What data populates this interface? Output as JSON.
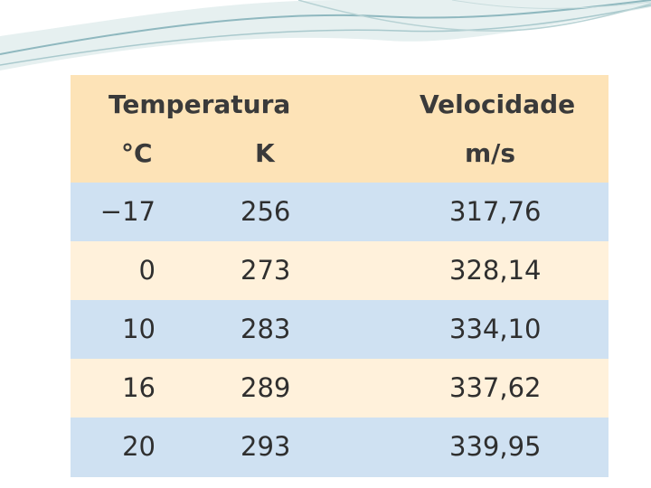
{
  "table": {
    "header": {
      "temperatura": "Temperatura",
      "velocidade": "Velocidade",
      "unit_celsius": "°C",
      "unit_kelvin": "K",
      "unit_velocity": "m/s"
    },
    "rows": [
      {
        "celsius": "−17",
        "kelvin": "256",
        "velocidade": "317,76"
      },
      {
        "celsius": "0",
        "kelvin": "273",
        "velocidade": "328,14"
      },
      {
        "celsius": "10",
        "kelvin": "283",
        "velocidade": "334,10"
      },
      {
        "celsius": "16",
        "kelvin": "289",
        "velocidade": "337,62"
      },
      {
        "celsius": "20",
        "kelvin": "293",
        "velocidade": "339,95"
      }
    ]
  },
  "colors": {
    "header_bg": "#fde3b7",
    "row_blue": "#cfe1f2",
    "row_cream": "#fff1db",
    "decor_teal": "#8fb8bf"
  }
}
